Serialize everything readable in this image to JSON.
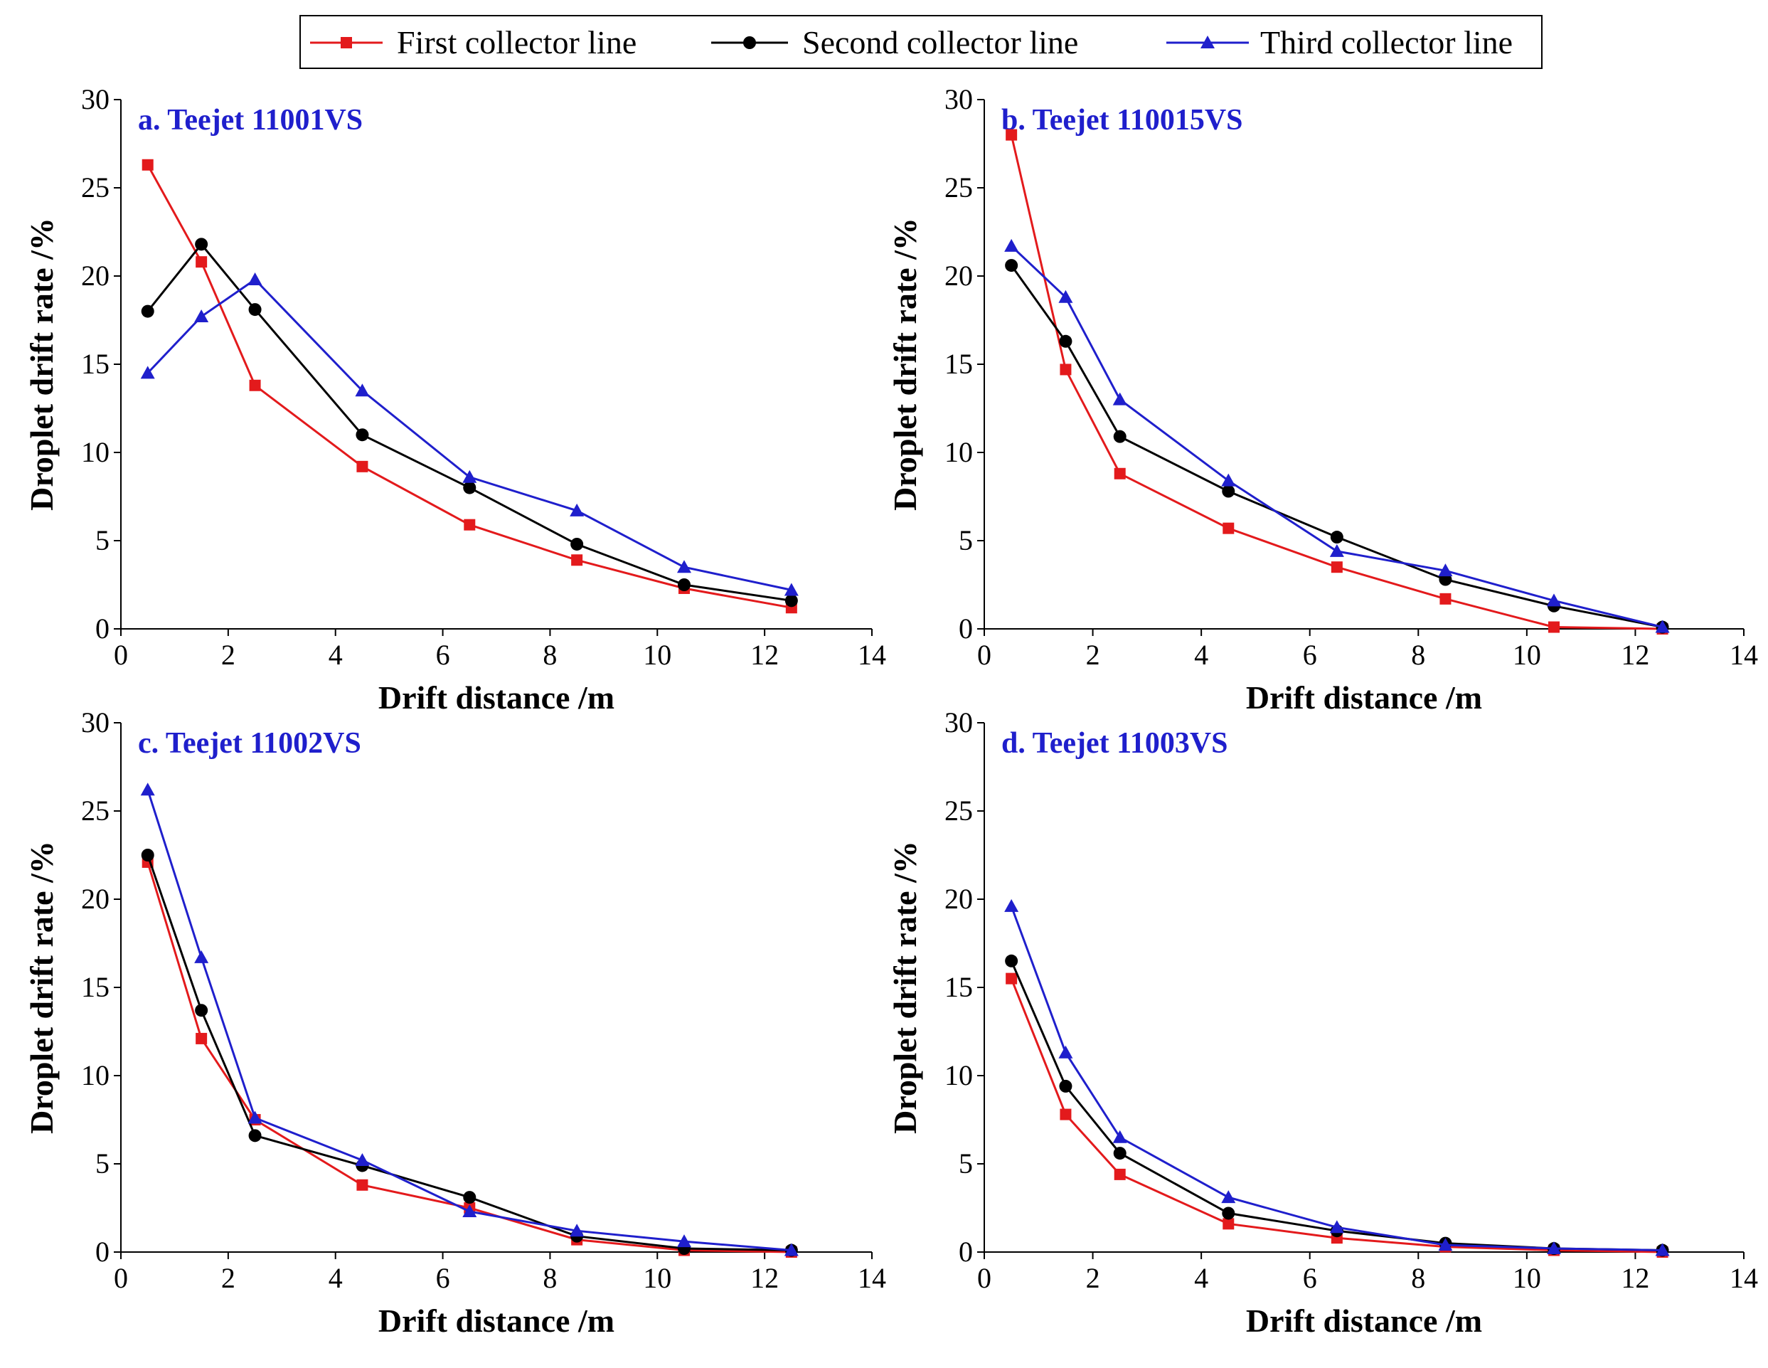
{
  "chart_data": {
    "type": "line",
    "legend": {
      "placement": "top-center",
      "entries": [
        {
          "name": "First collector line",
          "color": "#e31a1c",
          "marker": "square"
        },
        {
          "name": "Second collector line",
          "color": "#000000",
          "marker": "circle"
        },
        {
          "name": "Third collector line",
          "color": "#1f1fcc",
          "marker": "triangle"
        }
      ]
    },
    "title_color": "#1f1fcc",
    "panels": [
      {
        "title": "a. Teejet 11001VS",
        "xlabel": "Drift distance /m",
        "ylabel": "Droplet drift rate /%",
        "xlim": [
          0,
          14
        ],
        "ylim": [
          0,
          30
        ],
        "xticks": [
          0,
          2,
          4,
          6,
          8,
          10,
          12,
          14
        ],
        "yticks": [
          0,
          5,
          10,
          15,
          20,
          25,
          30
        ],
        "x": [
          0.5,
          1.5,
          2.5,
          4.5,
          6.5,
          8.5,
          10.5,
          12.5
        ],
        "series": [
          {
            "name": "First collector line",
            "values": [
              26.3,
              20.8,
              13.8,
              9.2,
              5.9,
              3.9,
              2.3,
              1.2
            ]
          },
          {
            "name": "Second collector line",
            "values": [
              18.0,
              21.8,
              18.1,
              11.0,
              8.0,
              4.8,
              2.5,
              1.6
            ]
          },
          {
            "name": "Third collector line",
            "values": [
              14.5,
              17.7,
              19.8,
              13.5,
              8.6,
              6.7,
              3.5,
              2.2
            ]
          }
        ]
      },
      {
        "title": "b. Teejet 110015VS",
        "xlabel": "Drift distance /m",
        "ylabel": "Droplet drift rate /%",
        "xlim": [
          0,
          14
        ],
        "ylim": [
          0,
          30
        ],
        "xticks": [
          0,
          2,
          4,
          6,
          8,
          10,
          12,
          14
        ],
        "yticks": [
          0,
          5,
          10,
          15,
          20,
          25,
          30
        ],
        "x": [
          0.5,
          1.5,
          2.5,
          4.5,
          6.5,
          8.5,
          10.5,
          12.5
        ],
        "series": [
          {
            "name": "First collector line",
            "values": [
              28.0,
              14.7,
              8.8,
              5.7,
              3.5,
              1.7,
              0.1,
              0.0
            ]
          },
          {
            "name": "Second collector line",
            "values": [
              20.6,
              16.3,
              10.9,
              7.8,
              5.2,
              2.8,
              1.3,
              0.1
            ]
          },
          {
            "name": "Third collector line",
            "values": [
              21.7,
              18.8,
              13.0,
              8.4,
              4.4,
              3.3,
              1.6,
              0.1
            ]
          }
        ]
      },
      {
        "title": "c. Teejet 11002VS",
        "xlabel": "Drift distance /m",
        "ylabel": "Droplet drift rate /%",
        "xlim": [
          0,
          14
        ],
        "ylim": [
          0,
          30
        ],
        "xticks": [
          0,
          2,
          4,
          6,
          8,
          10,
          12,
          14
        ],
        "yticks": [
          0,
          5,
          10,
          15,
          20,
          25,
          30
        ],
        "x": [
          0.5,
          1.5,
          2.5,
          4.5,
          6.5,
          8.5,
          10.5,
          12.5
        ],
        "series": [
          {
            "name": "First collector line",
            "values": [
              22.1,
              12.1,
              7.5,
              3.8,
              2.5,
              0.7,
              0.1,
              0.0
            ]
          },
          {
            "name": "Second collector line",
            "values": [
              22.5,
              13.7,
              6.6,
              4.9,
              3.1,
              0.9,
              0.2,
              0.1
            ]
          },
          {
            "name": "Third collector line",
            "values": [
              26.2,
              16.7,
              7.6,
              5.2,
              2.3,
              1.2,
              0.6,
              0.1
            ]
          }
        ]
      },
      {
        "title": "d. Teejet 11003VS",
        "xlabel": "Drift distance /m",
        "ylabel": "Droplet drift rate /%",
        "xlim": [
          0,
          14
        ],
        "ylim": [
          0,
          30
        ],
        "xticks": [
          0,
          2,
          4,
          6,
          8,
          10,
          12,
          14
        ],
        "yticks": [
          0,
          5,
          10,
          15,
          20,
          25,
          30
        ],
        "x": [
          0.5,
          1.5,
          2.5,
          4.5,
          6.5,
          8.5,
          10.5,
          12.5
        ],
        "series": [
          {
            "name": "First collector line",
            "values": [
              15.5,
              7.8,
              4.4,
              1.6,
              0.8,
              0.3,
              0.1,
              0.0
            ]
          },
          {
            "name": "Second collector line",
            "values": [
              16.5,
              9.4,
              5.6,
              2.2,
              1.2,
              0.5,
              0.2,
              0.1
            ]
          },
          {
            "name": "Third collector line",
            "values": [
              19.6,
              11.3,
              6.5,
              3.1,
              1.4,
              0.4,
              0.2,
              0.1
            ]
          }
        ]
      }
    ]
  }
}
